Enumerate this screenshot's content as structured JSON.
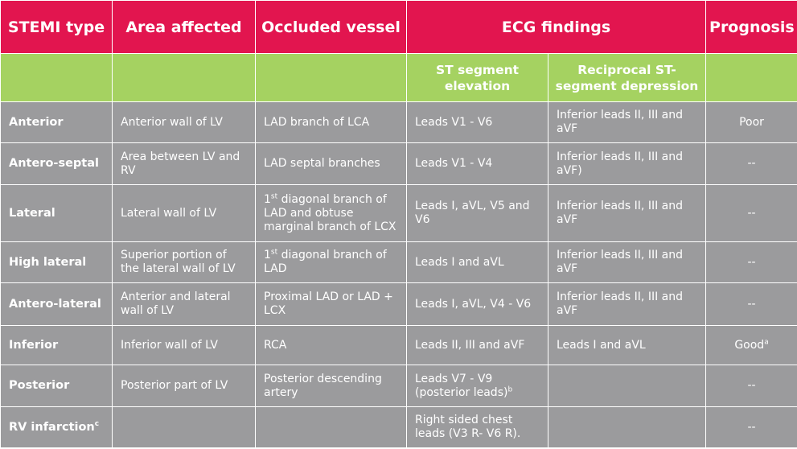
{
  "headers": [
    "STEMI type",
    "Area affected",
    "Occluded vessel",
    "ECG findings",
    "Prognosis"
  ],
  "ecg_subheaders": [
    "ST segment elevation",
    "Reciprocal ST-segment depression"
  ],
  "rows": [
    {
      "type": "Anterior",
      "type_sup": "",
      "area": "Anterior wall of LV",
      "vessel_sup": "",
      "vessel": "LAD branch of LCA",
      "st_elev": "Leads V1 - V6",
      "st_elev_sup": "",
      "st_dep": "Inferior leads II, III and aVF",
      "prognosis": "Poor",
      "prognosis_sup": ""
    },
    {
      "type": "Antero-septal",
      "type_sup": "",
      "area": "Area between LV and RV",
      "vessel_sup": "",
      "vessel": "LAD septal branches",
      "st_elev": "Leads V1 - V4",
      "st_elev_sup": "",
      "st_dep": "Inferior leads II, III and aVF)",
      "prognosis": "--",
      "prognosis_sup": ""
    },
    {
      "type": "Lateral",
      "type_sup": "",
      "area": "Lateral wall of LV",
      "vessel_sup": "st",
      "vessel": " diagonal branch of LAD and obtuse marginal branch of LCX",
      "vessel_prefix": "1",
      "st_elev": "Leads I, aVL, V5 and V6",
      "st_elev_sup": "",
      "st_dep": "Inferior leads II, III and aVF",
      "prognosis": "--",
      "prognosis_sup": ""
    },
    {
      "type": "High lateral",
      "type_sup": "",
      "area": "Superior portion of the lateral wall of LV",
      "vessel_sup": "st",
      "vessel": " diagonal branch of LAD",
      "vessel_prefix": "1",
      "st_elev": "Leads I and aVL",
      "st_elev_sup": "",
      "st_dep": "Inferior leads II, III and aVF",
      "prognosis": "--",
      "prognosis_sup": ""
    },
    {
      "type": "Antero-lateral",
      "type_sup": "",
      "area": "Anterior and lateral wall of LV",
      "vessel_sup": "",
      "vessel": "Proximal LAD or LAD + LCX",
      "st_elev": "Leads I, aVL, V4 - V6",
      "st_elev_sup": "",
      "st_dep": "Inferior leads II, III and aVF",
      "prognosis": "--",
      "prognosis_sup": ""
    },
    {
      "type": "Inferior",
      "type_sup": "",
      "area": "Inferior wall of LV",
      "vessel_sup": "",
      "vessel": "RCA",
      "st_elev": "Leads II, III and aVF",
      "st_elev_sup": "",
      "st_dep": "Leads I and aVL",
      "prognosis": "Good",
      "prognosis_sup": "a"
    },
    {
      "type": "Posterior",
      "type_sup": "",
      "area": "Posterior part of LV",
      "vessel_sup": "",
      "vessel": "Posterior descending artery",
      "st_elev": "Leads V7 - V9 (posterior leads)",
      "st_elev_sup": "b",
      "st_dep": "",
      "prognosis": "--",
      "prognosis_sup": ""
    },
    {
      "type": "RV infarction",
      "type_sup": "c",
      "area": "",
      "vessel_sup": "",
      "vessel": "",
      "st_elev": "Right sided chest leads (V3 R- V6 R).",
      "st_elev_sup": "",
      "st_dep": "",
      "prognosis": "--",
      "prognosis_sup": ""
    }
  ],
  "colors": {
    "header": "#e2154f",
    "subheader": "#a5d261",
    "body": "#9b9b9d",
    "text": "#ffffff"
  }
}
